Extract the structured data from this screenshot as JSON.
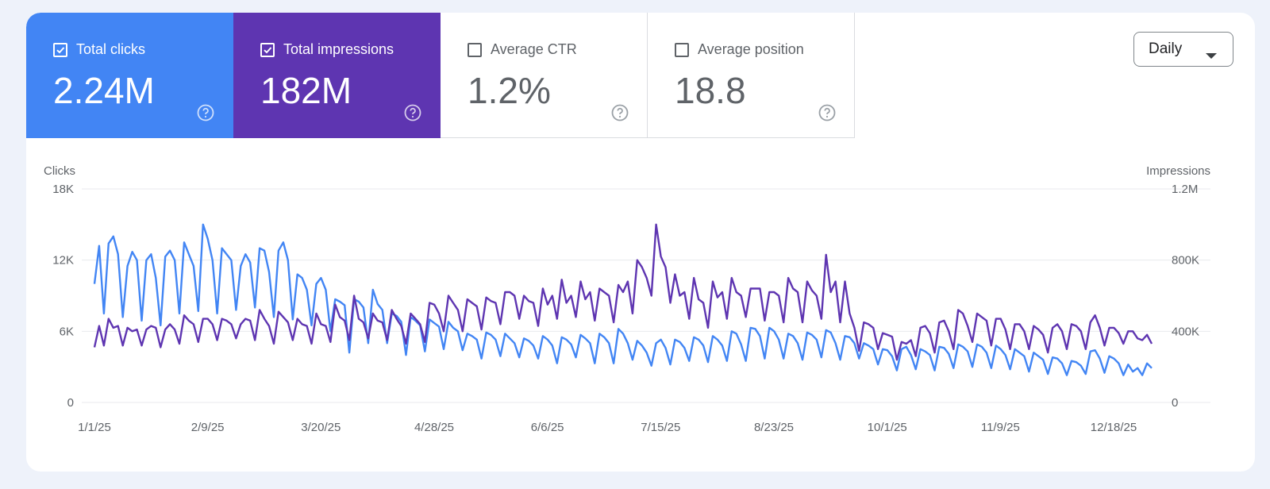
{
  "metrics": [
    {
      "label": "Total clicks",
      "value": "2.24M",
      "checked": true,
      "color": "#4285f4"
    },
    {
      "label": "Total impressions",
      "value": "182M",
      "checked": true,
      "color": "#5e35b1"
    },
    {
      "label": "Average CTR",
      "value": "1.2%",
      "checked": false
    },
    {
      "label": "Average position",
      "value": "18.8",
      "checked": false
    }
  ],
  "icons": {
    "help": "help-circle-icon",
    "check": "checkbox-checked-icon",
    "caret": "caret-down-icon"
  },
  "period_selector": {
    "label": "Daily"
  },
  "chart_data": {
    "type": "line",
    "ylabel_left": "Clicks",
    "ylabel_right": "Impressions",
    "y_left": {
      "ticks": [
        "0",
        "6K",
        "12K",
        "18K"
      ],
      "range": [
        0,
        18000
      ]
    },
    "y_right": {
      "ticks": [
        "0",
        "400K",
        "800K",
        "1.2M"
      ],
      "range": [
        0,
        1200000
      ]
    },
    "x_ticks": [
      "1/1/25",
      "2/9/25",
      "3/20/25",
      "4/28/25",
      "6/6/25",
      "7/15/25",
      "8/23/25",
      "10/1/25",
      "11/9/25",
      "12/18/25"
    ],
    "x_days_total": 365,
    "series": [
      {
        "name": "Total clicks",
        "axis": "left",
        "color": "#4285f4",
        "values": [
          10000,
          13200,
          7500,
          13400,
          14000,
          12500,
          7200,
          11500,
          12700,
          12000,
          6900,
          12000,
          12500,
          10500,
          6500,
          12300,
          12800,
          12000,
          7500,
          13500,
          12500,
          11500,
          7700,
          15000,
          13800,
          12000,
          7500,
          13000,
          12500,
          12000,
          7800,
          11500,
          12500,
          11800,
          8000,
          13000,
          12800,
          11000,
          7200,
          12800,
          13500,
          12000,
          7000,
          10800,
          10500,
          9500,
          6500,
          10000,
          10500,
          9500,
          6000,
          8700,
          8500,
          8200,
          4200,
          8700,
          8500,
          8000,
          5000,
          9500,
          8300,
          7800,
          5000,
          7500,
          7300,
          6800,
          4000,
          7200,
          6900,
          6500,
          4300,
          7000,
          6700,
          6400,
          4500,
          6800,
          6300,
          6000,
          4400,
          5800,
          5600,
          5300,
          3700,
          5900,
          5700,
          5300,
          3900,
          5800,
          5400,
          5000,
          3800,
          5400,
          5200,
          4800,
          3700,
          5600,
          5300,
          4800,
          3300,
          5500,
          5300,
          4900,
          3800,
          5700,
          5400,
          5000,
          3300,
          5800,
          5500,
          5000,
          3300,
          6200,
          5800,
          5000,
          3600,
          5200,
          4800,
          4200,
          3100,
          5000,
          5300,
          4600,
          3200,
          5300,
          5100,
          4600,
          3500,
          5500,
          5300,
          4800,
          3400,
          5600,
          5300,
          4800,
          3500,
          6000,
          5800,
          4900,
          3500,
          6300,
          6200,
          5600,
          3700,
          6300,
          6000,
          5300,
          3700,
          5800,
          5600,
          5000,
          3600,
          5900,
          5700,
          5300,
          3800,
          6100,
          5900,
          5000,
          3600,
          5600,
          5500,
          5000,
          3700,
          5000,
          4800,
          4500,
          3200,
          4500,
          4400,
          3900,
          2700,
          4500,
          4700,
          4000,
          2800,
          4500,
          4300,
          4000,
          2700,
          4700,
          4600,
          4100,
          2900,
          4900,
          4700,
          4300,
          3000,
          4900,
          4700,
          4200,
          2900,
          4800,
          4500,
          4000,
          2800,
          4500,
          4200,
          3900,
          2600,
          4200,
          3900,
          3600,
          2400,
          3800,
          3700,
          3300,
          2300,
          3500,
          3400,
          3100,
          2400,
          4300,
          4400,
          3700,
          2500,
          3900,
          3700,
          3300,
          2300,
          3200,
          2600,
          2900,
          2300,
          3300,
          2900
        ]
      },
      {
        "name": "Total impressions",
        "axis": "right",
        "color": "#5e35b1",
        "values": [
          310000,
          430000,
          320000,
          470000,
          420000,
          430000,
          320000,
          420000,
          400000,
          410000,
          320000,
          410000,
          430000,
          420000,
          310000,
          410000,
          440000,
          410000,
          330000,
          490000,
          460000,
          440000,
          340000,
          470000,
          470000,
          440000,
          350000,
          470000,
          460000,
          440000,
          360000,
          440000,
          470000,
          460000,
          350000,
          520000,
          470000,
          430000,
          330000,
          510000,
          480000,
          450000,
          350000,
          470000,
          440000,
          430000,
          330000,
          500000,
          440000,
          430000,
          340000,
          550000,
          480000,
          460000,
          350000,
          600000,
          470000,
          450000,
          360000,
          500000,
          460000,
          450000,
          350000,
          520000,
          470000,
          430000,
          330000,
          500000,
          470000,
          440000,
          340000,
          560000,
          550000,
          500000,
          400000,
          600000,
          560000,
          520000,
          400000,
          580000,
          560000,
          540000,
          410000,
          590000,
          570000,
          560000,
          440000,
          620000,
          620000,
          600000,
          470000,
          600000,
          570000,
          560000,
          430000,
          640000,
          550000,
          600000,
          470000,
          690000,
          560000,
          600000,
          480000,
          680000,
          580000,
          620000,
          460000,
          640000,
          620000,
          600000,
          450000,
          660000,
          620000,
          680000,
          500000,
          800000,
          760000,
          700000,
          600000,
          1000000,
          820000,
          760000,
          560000,
          720000,
          600000,
          620000,
          470000,
          700000,
          580000,
          560000,
          420000,
          680000,
          590000,
          620000,
          470000,
          700000,
          620000,
          600000,
          480000,
          640000,
          640000,
          640000,
          460000,
          620000,
          620000,
          600000,
          450000,
          700000,
          640000,
          620000,
          450000,
          680000,
          630000,
          600000,
          470000,
          830000,
          620000,
          680000,
          450000,
          680000,
          500000,
          420000,
          290000,
          450000,
          440000,
          420000,
          300000,
          390000,
          380000,
          370000,
          240000,
          340000,
          330000,
          350000,
          260000,
          420000,
          430000,
          390000,
          280000,
          450000,
          460000,
          400000,
          300000,
          520000,
          500000,
          430000,
          340000,
          500000,
          480000,
          460000,
          320000,
          470000,
          470000,
          410000,
          300000,
          440000,
          440000,
          400000,
          300000,
          430000,
          410000,
          380000,
          280000,
          420000,
          440000,
          400000,
          300000,
          440000,
          430000,
          400000,
          300000,
          450000,
          490000,
          420000,
          320000,
          420000,
          420000,
          390000,
          330000,
          400000,
          400000,
          360000,
          350000,
          380000,
          330000
        ]
      }
    ]
  }
}
